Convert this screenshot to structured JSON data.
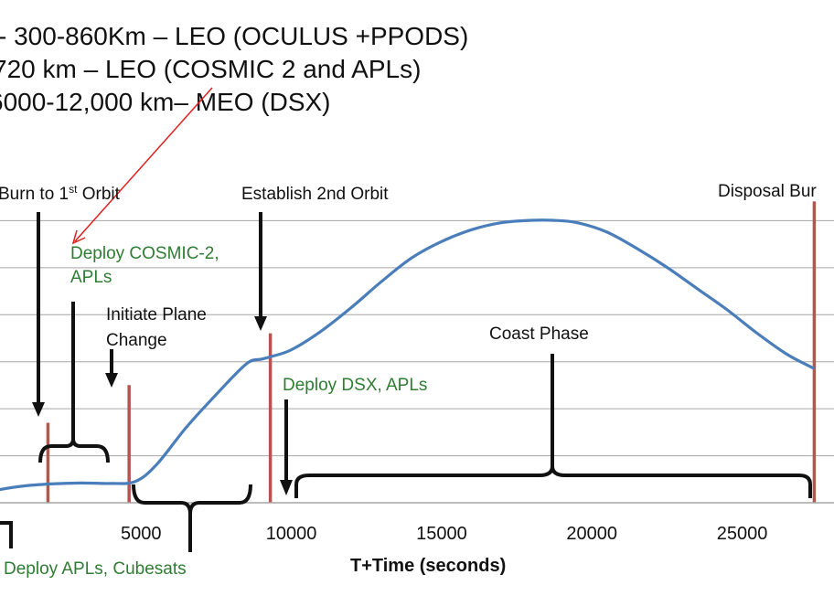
{
  "header_lines": [
    "- 300-860Km – LEO (OCULUS +PPODS)",
    "720 km – LEO (COSMIC 2 and APLs)",
    "6000-12,000 km– MEO (DSX)"
  ],
  "colors": {
    "curve": "#4a7ebb",
    "burn_line": "#b85450",
    "green_text": "#2e7d32",
    "arrow_annotation": "#e02020",
    "grid": "#a6a6a6"
  },
  "chart_data": {
    "type": "line",
    "xlabel": "T+Time (seconds)",
    "ylabel": "",
    "xlim": [
      0,
      27600
    ],
    "ylim": [
      0,
      6
    ],
    "x_ticks": [
      5000,
      10000,
      15000,
      20000,
      25000
    ],
    "x_tick_labels": [
      "5000",
      "10000",
      "15000",
      "20000",
      "25000"
    ],
    "grid": "horizontal",
    "series": [
      {
        "x": [
          0,
          1000,
          2000,
          3000,
          4000,
          4800,
          5500,
          6500,
          7500,
          8500,
          9000,
          9300,
          10000,
          11000,
          12000,
          13000,
          14000,
          15000,
          16000,
          17000,
          18000,
          18700,
          19500,
          20500,
          21500,
          22500,
          23500,
          24500,
          25500,
          26500,
          27400
        ],
        "y": [
          0.25,
          0.35,
          0.4,
          0.42,
          0.41,
          0.45,
          0.8,
          1.6,
          2.3,
          2.95,
          3.05,
          3.1,
          3.25,
          3.65,
          4.15,
          4.7,
          5.2,
          5.55,
          5.8,
          5.95,
          6.0,
          6.0,
          5.95,
          5.75,
          5.4,
          5.0,
          4.55,
          4.1,
          3.6,
          3.15,
          2.85
        ]
      }
    ],
    "burns": [
      {
        "x": 1900,
        "height": 1.7
      },
      {
        "x": 4600,
        "height": 2.5
      },
      {
        "x": 9300,
        "height": 3.6
      },
      {
        "x": 27400,
        "height": 6.4
      }
    ],
    "annotations": [
      {
        "key": "burn_first",
        "text": "Burn to 1st Orbit",
        "x": 1900,
        "color": "black"
      },
      {
        "key": "deploy_cosmic_1",
        "text": "Deploy COSMIC-2,",
        "color": "green"
      },
      {
        "key": "deploy_cosmic_2",
        "text": "APLs",
        "color": "green"
      },
      {
        "key": "initiate_1",
        "text": "Initiate Plane",
        "color": "black"
      },
      {
        "key": "initiate_2",
        "text": "Change",
        "color": "black"
      },
      {
        "key": "establish",
        "text": "Establish 2nd Orbit",
        "color": "black"
      },
      {
        "key": "coast",
        "text": "Coast Phase",
        "color": "black"
      },
      {
        "key": "deploy_dsx",
        "text": "Deploy DSX, APLs",
        "color": "green"
      },
      {
        "key": "disposal",
        "text": "Disposal Bur",
        "color": "black"
      },
      {
        "key": "deploy_apls",
        "text": "Deploy APLs, Cubesats",
        "color": "green"
      }
    ]
  }
}
